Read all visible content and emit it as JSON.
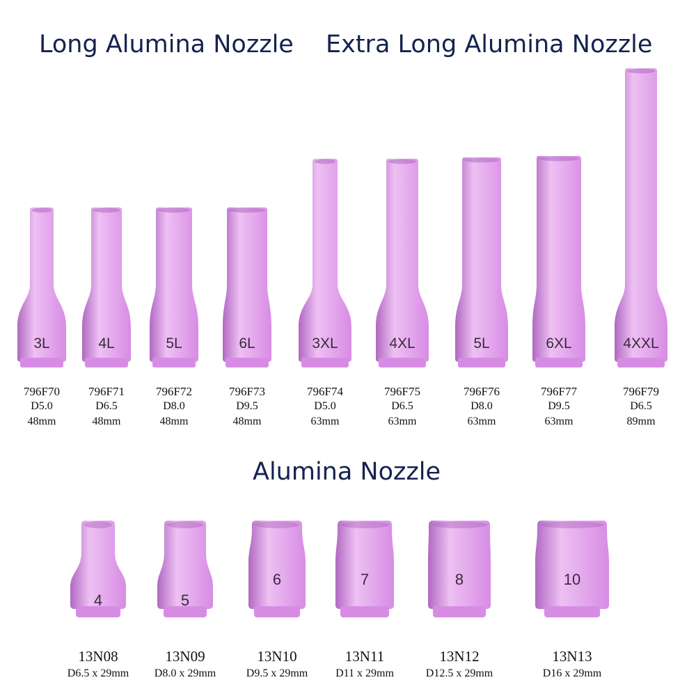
{
  "headings": {
    "long": "Long Alumina Nozzle",
    "extra_long": "Extra Long Alumina Nozzle",
    "standard": "Alumina Nozzle"
  },
  "colors": {
    "ceramic": "#d78ce4",
    "ceramic_light": "#eec0f3",
    "ceramic_dark": "#b169c2",
    "heading": "#14224f",
    "label": "#111111"
  },
  "long_nozzles": [
    {
      "mark": "3L",
      "part": "796F70",
      "spec": "D5.0",
      "length": "48mm",
      "bore_mm": 5.0,
      "length_mm": 48
    },
    {
      "mark": "4L",
      "part": "796F71",
      "spec": "D6.5",
      "length": "48mm",
      "bore_mm": 6.5,
      "length_mm": 48
    },
    {
      "mark": "5L",
      "part": "796F72",
      "spec": "D8.0",
      "length": "48mm",
      "bore_mm": 8.0,
      "length_mm": 48
    },
    {
      "mark": "6L",
      "part": "796F73",
      "spec": "D9.5",
      "length": "48mm",
      "bore_mm": 9.5,
      "length_mm": 48
    }
  ],
  "extra_long_nozzles": [
    {
      "mark": "3XL",
      "part": "796F74",
      "spec": "D5.0",
      "length": "63mm",
      "bore_mm": 5.0,
      "length_mm": 63
    },
    {
      "mark": "4XL",
      "part": "796F75",
      "spec": "D6.5",
      "length": "63mm",
      "bore_mm": 6.5,
      "length_mm": 63
    },
    {
      "mark": "5L",
      "part": "796F76",
      "spec": "D8.0",
      "length": "63mm",
      "bore_mm": 8.0,
      "length_mm": 63
    },
    {
      "mark": "6XL",
      "part": "796F77",
      "spec": "D9.5",
      "length": "63mm",
      "bore_mm": 9.5,
      "length_mm": 63
    },
    {
      "mark": "4XXL",
      "part": "796F79",
      "spec": "D6.5",
      "length": "89mm",
      "bore_mm": 6.5,
      "length_mm": 89
    }
  ],
  "standard_nozzles": [
    {
      "mark": "4",
      "part": "13N08",
      "spec": "D6.5 x 29mm",
      "bore_mm": 6.5
    },
    {
      "mark": "5",
      "part": "13N09",
      "spec": "D8.0 x 29mm",
      "bore_mm": 8.0
    },
    {
      "mark": "6",
      "part": "13N10",
      "spec": "D9.5 x 29mm",
      "bore_mm": 9.5
    },
    {
      "mark": "7",
      "part": "13N11",
      "spec": "D11 x 29mm",
      "bore_mm": 11
    },
    {
      "mark": "8",
      "part": "13N12",
      "spec": "D12.5 x 29mm",
      "bore_mm": 12.5
    },
    {
      "mark": "10",
      "part": "13N13",
      "spec": "D16 x 29mm",
      "bore_mm": 16
    }
  ]
}
